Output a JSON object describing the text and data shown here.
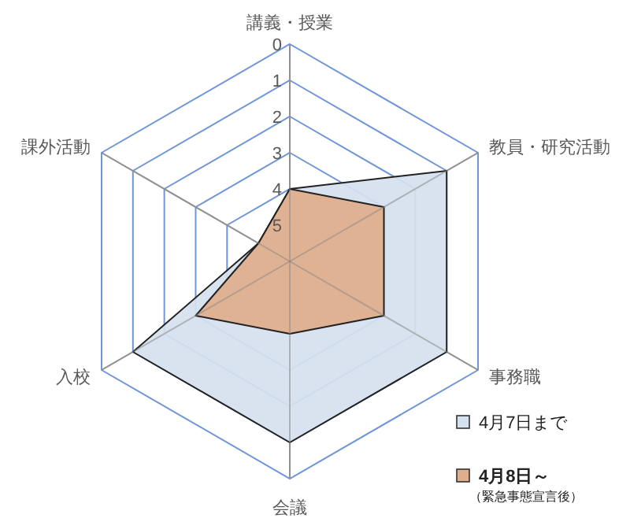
{
  "chart_data": {
    "type": "radar",
    "categories": [
      "講義・授業",
      "教員・研究活動",
      "事務職",
      "会議",
      "入校",
      "課外活動"
    ],
    "series": [
      {
        "name": "4月7日まで",
        "color": "#d6e1ef",
        "values": [
          4,
          1,
          1,
          1,
          1,
          5
        ]
      },
      {
        "name": "4月8日～",
        "color": "#dfae8c",
        "values": [
          4,
          3,
          3,
          4,
          3,
          5
        ]
      }
    ],
    "annotations": [
      "（緊急事態宣言後）"
    ],
    "ylim": [
      6,
      0
    ],
    "yticks": [
      0,
      1,
      2,
      3,
      4,
      5
    ],
    "grid": true,
    "legend": "bottom right"
  }
}
